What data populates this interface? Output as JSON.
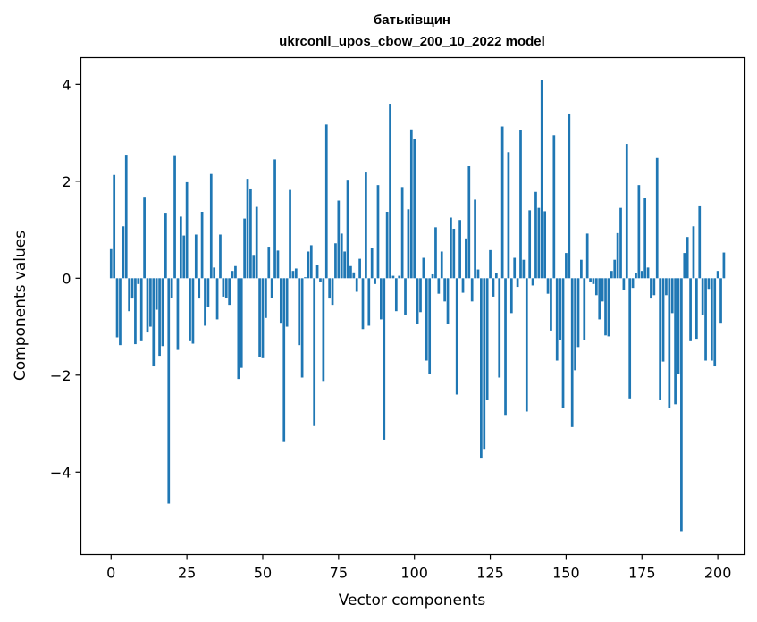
{
  "chart_data": {
    "type": "bar",
    "title": "батьківщин",
    "subtitle": "ukrconll_upos_cbow_200_10_2022 model",
    "xlabel": "Vector components",
    "ylabel": "Components values",
    "xlim": [
      -9.95,
      208.95
    ],
    "ylim": [
      -5.7,
      4.55
    ],
    "xticks": [
      0,
      25,
      50,
      75,
      100,
      125,
      150,
      175,
      200
    ],
    "yticks": [
      -4,
      -2,
      0,
      2,
      4
    ],
    "xtick_labels": [
      "0",
      "25",
      "50",
      "75",
      "100",
      "125",
      "150",
      "175",
      "200"
    ],
    "ytick_labels": [
      "−4",
      "−2",
      "0",
      "2",
      "4"
    ],
    "bar_color": "#1f77b4",
    "values": [
      0.6,
      2.13,
      -1.22,
      -1.38,
      1.07,
      2.53,
      -0.68,
      -0.42,
      -1.36,
      -0.12,
      -1.3,
      1.68,
      -1.12,
      -1.0,
      -1.82,
      -0.65,
      -1.6,
      -1.4,
      1.35,
      -4.65,
      -0.4,
      2.52,
      -1.48,
      1.27,
      0.88,
      1.98,
      -1.3,
      -1.35,
      0.9,
      -0.42,
      1.37,
      -0.98,
      -0.6,
      2.15,
      0.22,
      -0.85,
      0.9,
      -0.38,
      -0.4,
      -0.55,
      0.15,
      0.25,
      -2.08,
      -1.85,
      1.23,
      2.05,
      1.85,
      0.48,
      1.47,
      -1.63,
      -1.65,
      -0.82,
      0.65,
      -0.4,
      2.45,
      0.57,
      -0.92,
      -3.38,
      -1.0,
      1.82,
      0.15,
      0.2,
      -1.38,
      -2.05,
      0.02,
      0.55,
      0.68,
      -3.05,
      0.28,
      -0.08,
      -2.12,
      3.17,
      -0.42,
      -0.55,
      0.72,
      1.6,
      0.92,
      0.55,
      2.03,
      0.25,
      0.12,
      -0.28,
      0.4,
      -1.05,
      2.18,
      -0.98,
      0.62,
      -0.12,
      1.92,
      -0.85,
      -3.33,
      1.37,
      3.6,
      0.05,
      -0.68,
      0.05,
      1.88,
      -0.75,
      1.42,
      3.07,
      2.87,
      -0.95,
      -0.7,
      0.42,
      -1.7,
      -1.98,
      0.08,
      1.05,
      -0.32,
      0.55,
      -0.48,
      -0.95,
      1.25,
      1.02,
      -2.4,
      1.2,
      -0.3,
      0.82,
      2.31,
      -0.48,
      1.62,
      0.18,
      -3.72,
      -3.52,
      -2.52,
      0.58,
      -0.38,
      0.1,
      -2.05,
      3.13,
      -2.82,
      2.6,
      -0.72,
      0.42,
      -0.18,
      3.05,
      0.38,
      -2.75,
      1.4,
      -0.15,
      1.78,
      1.45,
      4.08,
      1.38,
      -0.32,
      -1.08,
      2.95,
      -1.7,
      -1.28,
      -2.68,
      0.52,
      3.38,
      -3.07,
      -1.9,
      -1.42,
      0.38,
      -1.28,
      0.92,
      -0.08,
      -0.12,
      -0.35,
      -0.85,
      -0.48,
      -1.18,
      -1.2,
      0.15,
      0.38,
      0.93,
      1.45,
      -0.25,
      2.77,
      -2.48,
      -0.2,
      0.1,
      1.92,
      0.15,
      1.65,
      0.22,
      -0.42,
      -0.35,
      2.48,
      -2.52,
      -1.72,
      -0.35,
      -2.68,
      -0.72,
      -2.6,
      -1.98,
      -5.22,
      0.52,
      0.85,
      -1.3,
      1.07,
      -1.25,
      1.5,
      -0.75,
      -1.7,
      -0.22,
      -1.7,
      -1.82,
      0.15,
      -0.92,
      0.53
    ]
  }
}
